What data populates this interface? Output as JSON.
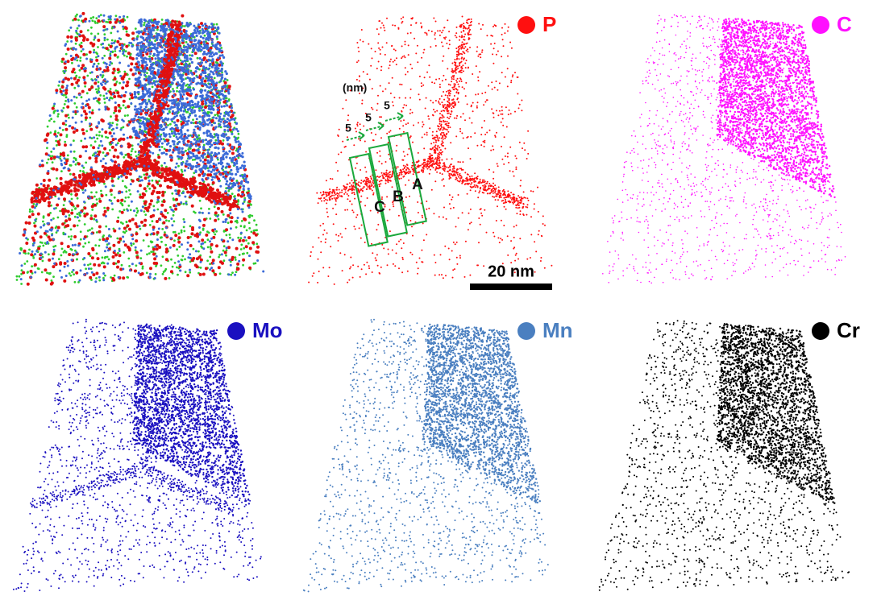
{
  "panels": [
    {
      "label": "P",
      "color": "#ff1010"
    },
    {
      "label": "C",
      "color": "#ff10ff"
    },
    {
      "label": "Mo",
      "color": "#1a10c0"
    },
    {
      "label": "Mn",
      "color": "#4a7fc0"
    },
    {
      "label": "Cr",
      "color": "#000000"
    }
  ],
  "annotations": {
    "unit": "(nm)",
    "widths": [
      5,
      5,
      5
    ],
    "boxes": [
      "A",
      "B",
      "C"
    ],
    "scale_bar": "20 nm"
  }
}
